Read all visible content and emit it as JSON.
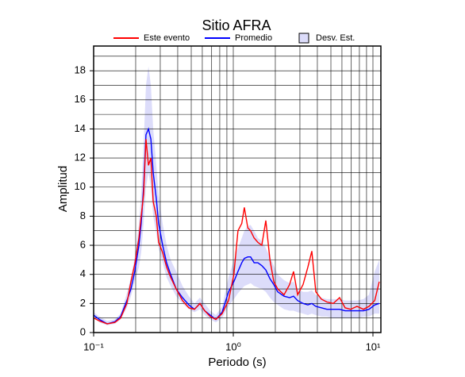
{
  "chart_data": {
    "type": "line",
    "title": "Sitio AFRA",
    "xlabel": "Periodo (s)",
    "ylabel": "Amplitud",
    "xscale": "log",
    "grid": true,
    "legend": "top",
    "xlim": [
      0.1,
      11.4
    ],
    "ylim": [
      0,
      19.7
    ],
    "xticks": [
      {
        "value": 0.1,
        "label": "10⁻¹"
      },
      {
        "value": 1,
        "label": "10⁰"
      },
      {
        "value": 10,
        "label": "10¹"
      }
    ],
    "xminor": [
      0.2,
      0.3,
      0.4,
      0.5,
      0.6,
      0.7,
      0.8,
      0.9,
      2,
      3,
      4,
      5,
      6,
      7,
      8,
      9
    ],
    "yticks": [
      0,
      2,
      4,
      6,
      8,
      10,
      12,
      14,
      16,
      18
    ],
    "yminor": [
      1,
      3,
      5,
      7,
      9,
      11,
      13,
      15,
      17,
      19
    ],
    "x": [
      0.1,
      0.11,
      0.125,
      0.142,
      0.156,
      0.173,
      0.185,
      0.197,
      0.211,
      0.219,
      0.228,
      0.237,
      0.247,
      0.257,
      0.267,
      0.281,
      0.292,
      0.312,
      0.333,
      0.356,
      0.39,
      0.433,
      0.481,
      0.527,
      0.577,
      0.624,
      0.684,
      0.75,
      0.832,
      0.925,
      1.01,
      1.08,
      1.15,
      1.2,
      1.27,
      1.33,
      1.41,
      1.5,
      1.6,
      1.71,
      1.83,
      1.95,
      2.08,
      2.31,
      2.53,
      2.7,
      2.89,
      3.16,
      3.42,
      3.65,
      3.9,
      4.27,
      4.68,
      5.2,
      5.77,
      6.32,
      6.93,
      7.69,
      8.55,
      9.37,
      10.3,
      11.1
    ],
    "band": {
      "name": "Desv. Est.",
      "color": "#dcdcfa",
      "lower": [
        1.0,
        0.7,
        0.5,
        0.6,
        0.9,
        1.7,
        2.5,
        3.5,
        4.5,
        5.5,
        7.5,
        10,
        11,
        10,
        8,
        6.8,
        5.8,
        4.8,
        3.8,
        3.2,
        2.5,
        2.0,
        1.6,
        1.4,
        1.6,
        1.2,
        0.9,
        0.7,
        1.0,
        1.8,
        2.3,
        2.7,
        3.0,
        3.2,
        3.3,
        3.4,
        3.2,
        3.1,
        3.0,
        2.8,
        2.4,
        2.1,
        1.9,
        1.6,
        1.5,
        1.5,
        1.4,
        1.3,
        1.2,
        1.3,
        1.2,
        1.1,
        1.1,
        1.0,
        1.0,
        1.0,
        1.0,
        1.0,
        1.1,
        1.1,
        1.3,
        1.3
      ],
      "upper": [
        1.4,
        1.1,
        0.8,
        0.9,
        1.3,
        2.7,
        3.8,
        5.2,
        7.5,
        9.5,
        13,
        17,
        18.3,
        17,
        14,
        11.5,
        9.5,
        7.5,
        6,
        5,
        4.2,
        3.2,
        2.5,
        2.0,
        2.4,
        2.0,
        1.5,
        1.2,
        1.8,
        3.8,
        5,
        5.8,
        6.5,
        7,
        7.3,
        7.4,
        7,
        6.5,
        6.3,
        5.8,
        5.2,
        4.6,
        4.0,
        3.6,
        3.4,
        3.5,
        3.0,
        2.8,
        2.8,
        2.9,
        2.6,
        2.4,
        2.3,
        2.3,
        2.3,
        2.2,
        2.2,
        2.2,
        2.3,
        2.6,
        4.2,
        5
      ]
    },
    "series": [
      {
        "name": "Este evento",
        "color": "#ff0000",
        "values": [
          1.0,
          0.8,
          0.6,
          0.7,
          1.0,
          2.0,
          3.5,
          4.7,
          6.5,
          8,
          9.5,
          13.3,
          11.5,
          12,
          9,
          8,
          6.2,
          5.5,
          4.5,
          3.8,
          3.0,
          2.2,
          1.7,
          1.6,
          2.0,
          1.5,
          1.1,
          0.9,
          1.3,
          2.2,
          4.0,
          7.0,
          7.5,
          8.6,
          7.2,
          7.0,
          6.5,
          6.2,
          6.0,
          7.7,
          5.0,
          3.5,
          3.0,
          2.6,
          3.3,
          4.2,
          2.6,
          3.3,
          4.5,
          5.6,
          2.8,
          2.3,
          2.1,
          2.0,
          2.4,
          1.7,
          1.6,
          1.8,
          1.6,
          1.8,
          2.2,
          3.5
        ]
      },
      {
        "name": "Promedio",
        "color": "#0000ff",
        "values": [
          1.2,
          0.9,
          0.6,
          0.75,
          1.1,
          2.2,
          3.0,
          4.2,
          6,
          7.5,
          10,
          13.6,
          14.0,
          13.3,
          11,
          9.2,
          7.5,
          6,
          4.8,
          4,
          3,
          2.4,
          1.9,
          1.6,
          2.0,
          1.5,
          1.2,
          0.9,
          1.4,
          2.8,
          3.5,
          4.2,
          4.8,
          5.1,
          5.2,
          5.2,
          4.8,
          4.8,
          4.6,
          4.3,
          3.7,
          3.3,
          2.8,
          2.5,
          2.4,
          2.5,
          2.2,
          2.0,
          1.9,
          2.0,
          1.8,
          1.7,
          1.6,
          1.6,
          1.6,
          1.5,
          1.5,
          1.5,
          1.5,
          1.6,
          1.9,
          2.0
        ]
      }
    ]
  }
}
